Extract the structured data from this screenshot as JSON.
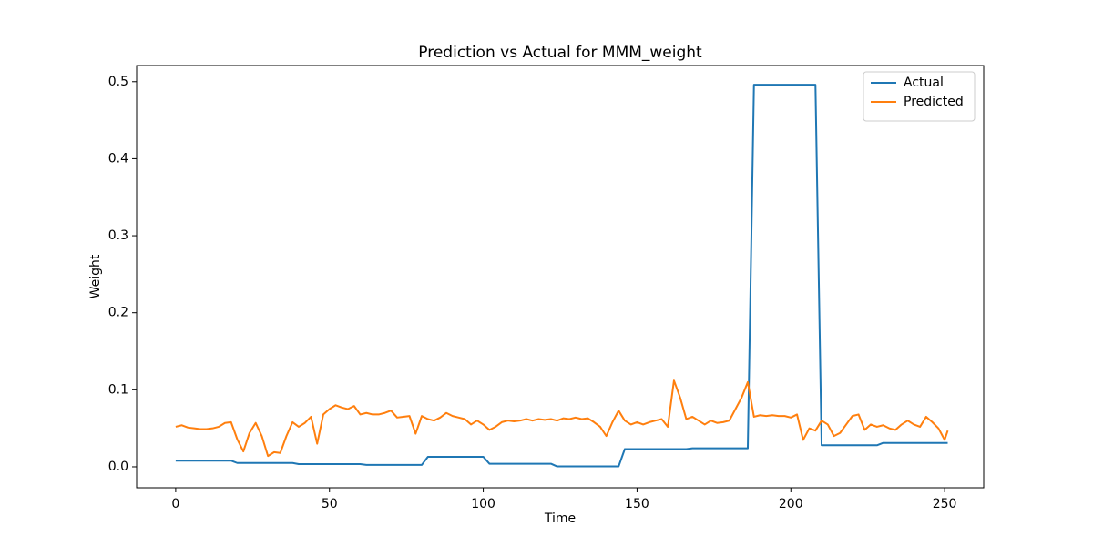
{
  "chart_data": {
    "type": "line",
    "title": "Prediction vs Actual for MMM_weight",
    "x_label": "Time",
    "y_label": "Weight",
    "x": [
      0,
      2,
      4,
      6,
      8,
      10,
      12,
      14,
      16,
      18,
      20,
      22,
      24,
      26,
      28,
      30,
      32,
      34,
      36,
      38,
      40,
      42,
      44,
      46,
      48,
      50,
      52,
      54,
      56,
      58,
      60,
      62,
      64,
      66,
      68,
      70,
      72,
      74,
      76,
      78,
      80,
      82,
      84,
      86,
      88,
      90,
      92,
      94,
      96,
      98,
      100,
      102,
      104,
      106,
      108,
      110,
      112,
      114,
      116,
      118,
      120,
      122,
      124,
      126,
      128,
      130,
      132,
      134,
      136,
      138,
      140,
      142,
      144,
      146,
      148,
      150,
      152,
      154,
      156,
      158,
      160,
      162,
      164,
      166,
      168,
      170,
      172,
      174,
      176,
      178,
      180,
      182,
      184,
      186,
      188,
      190,
      192,
      194,
      196,
      198,
      200,
      202,
      204,
      206,
      208,
      210,
      212,
      214,
      216,
      218,
      220,
      222,
      224,
      226,
      228,
      230,
      232,
      234,
      236,
      238,
      240,
      242,
      244,
      246,
      248,
      250,
      251
    ],
    "series": [
      {
        "name": "Actual",
        "color": "#1f77b4",
        "values": [
          0.008,
          0.008,
          0.008,
          0.008,
          0.008,
          0.008,
          0.008,
          0.008,
          0.008,
          0.008,
          0.005,
          0.005,
          0.005,
          0.005,
          0.005,
          0.005,
          0.005,
          0.005,
          0.005,
          0.005,
          0.0035,
          0.0035,
          0.0035,
          0.0035,
          0.0035,
          0.0035,
          0.0035,
          0.0035,
          0.0035,
          0.0035,
          0.0035,
          0.0025,
          0.0025,
          0.0025,
          0.0025,
          0.0025,
          0.0025,
          0.0025,
          0.0025,
          0.0025,
          0.0025,
          0.013,
          0.013,
          0.013,
          0.013,
          0.013,
          0.013,
          0.013,
          0.013,
          0.013,
          0.013,
          0.004,
          0.004,
          0.004,
          0.004,
          0.004,
          0.004,
          0.004,
          0.004,
          0.004,
          0.004,
          0.004,
          0.0005,
          0.0005,
          0.0005,
          0.0005,
          0.0005,
          0.0005,
          0.0005,
          0.0005,
          0.0005,
          0.0005,
          0.0005,
          0.023,
          0.023,
          0.023,
          0.023,
          0.023,
          0.023,
          0.023,
          0.023,
          0.023,
          0.023,
          0.023,
          0.024,
          0.024,
          0.024,
          0.024,
          0.024,
          0.024,
          0.024,
          0.024,
          0.024,
          0.024,
          0.496,
          0.496,
          0.496,
          0.496,
          0.496,
          0.496,
          0.496,
          0.496,
          0.496,
          0.496,
          0.496,
          0.028,
          0.028,
          0.028,
          0.028,
          0.028,
          0.028,
          0.028,
          0.028,
          0.028,
          0.028,
          0.031,
          0.031,
          0.031,
          0.031,
          0.031,
          0.031,
          0.031,
          0.031,
          0.031,
          0.031,
          0.031,
          0.031
        ]
      },
      {
        "name": "Predicted",
        "color": "#ff7f0e",
        "values": [
          0.052,
          0.054,
          0.051,
          0.05,
          0.049,
          0.049,
          0.05,
          0.052,
          0.057,
          0.058,
          0.036,
          0.02,
          0.044,
          0.057,
          0.04,
          0.014,
          0.019,
          0.018,
          0.04,
          0.058,
          0.052,
          0.057,
          0.065,
          0.03,
          0.068,
          0.075,
          0.08,
          0.077,
          0.075,
          0.079,
          0.068,
          0.07,
          0.068,
          0.068,
          0.07,
          0.073,
          0.064,
          0.065,
          0.066,
          0.043,
          0.066,
          0.062,
          0.06,
          0.064,
          0.07,
          0.066,
          0.064,
          0.062,
          0.055,
          0.06,
          0.055,
          0.048,
          0.052,
          0.058,
          0.06,
          0.059,
          0.06,
          0.062,
          0.06,
          0.062,
          0.061,
          0.062,
          0.06,
          0.063,
          0.062,
          0.064,
          0.062,
          0.063,
          0.058,
          0.052,
          0.04,
          0.058,
          0.073,
          0.06,
          0.055,
          0.058,
          0.055,
          0.058,
          0.06,
          0.062,
          0.052,
          0.112,
          0.09,
          0.062,
          0.065,
          0.06,
          0.055,
          0.06,
          0.057,
          0.058,
          0.06,
          0.075,
          0.09,
          0.11,
          0.065,
          0.067,
          0.066,
          0.067,
          0.066,
          0.066,
          0.064,
          0.068,
          0.035,
          0.05,
          0.047,
          0.06,
          0.055,
          0.04,
          0.044,
          0.055,
          0.066,
          0.068,
          0.048,
          0.055,
          0.052,
          0.054,
          0.05,
          0.048,
          0.055,
          0.06,
          0.055,
          0.052,
          0.065,
          0.058,
          0.05,
          0.035,
          0.047
        ]
      }
    ],
    "xlim": [
      -12.7,
      262.7
    ],
    "xticks": [
      0,
      50,
      100,
      150,
      200,
      250
    ],
    "ylim": [
      -0.0272,
      0.521
    ],
    "yticks": [
      {
        "value": 0,
        "label": "0.0"
      },
      0.1,
      0.2,
      0.3,
      0.4,
      0.5
    ],
    "legend": "upper right"
  }
}
